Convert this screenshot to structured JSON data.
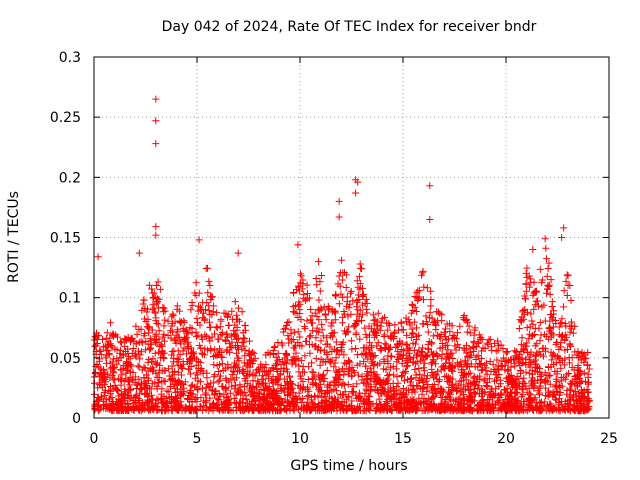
{
  "chart_data": {
    "type": "scatter",
    "title": "Day 042 of 2024, Rate Of TEC Index for receiver bndr",
    "xlabel": "GPS time / hours",
    "ylabel": "ROTI / TECUs",
    "xlim": [
      0,
      25
    ],
    "ylim": [
      0,
      0.3
    ],
    "xticks": [
      0,
      5,
      10,
      15,
      20,
      25
    ],
    "yticks": [
      0,
      0.05,
      0.1,
      0.15,
      0.2,
      0.25,
      0.3
    ],
    "xtick_labels": [
      "0",
      "5",
      "10",
      "15",
      "20",
      "25"
    ],
    "ytick_labels": [
      "0",
      "0.05",
      "0.1",
      "0.15",
      "0.2",
      "0.25",
      "0.3"
    ],
    "grid": true,
    "marker": "+",
    "color": "#ff0000",
    "notable_points": [
      {
        "x": 3.0,
        "y": 0.265
      },
      {
        "x": 3.0,
        "y": 0.247
      },
      {
        "x": 3.0,
        "y": 0.228
      },
      {
        "x": 3.0,
        "y": 0.159
      },
      {
        "x": 3.0,
        "y": 0.152
      },
      {
        "x": 12.7,
        "y": 0.198
      },
      {
        "x": 12.8,
        "y": 0.196
      },
      {
        "x": 12.7,
        "y": 0.187
      },
      {
        "x": 11.9,
        "y": 0.18
      },
      {
        "x": 11.9,
        "y": 0.167
      },
      {
        "x": 16.3,
        "y": 0.193
      },
      {
        "x": 16.3,
        "y": 0.165
      },
      {
        "x": 22.8,
        "y": 0.158
      },
      {
        "x": 22.7,
        "y": 0.15
      },
      {
        "x": 21.9,
        "y": 0.149
      },
      {
        "x": 5.1,
        "y": 0.148
      },
      {
        "x": 9.9,
        "y": 0.144
      },
      {
        "x": 0.2,
        "y": 0.134
      },
      {
        "x": 7.0,
        "y": 0.137
      },
      {
        "x": 10.9,
        "y": 0.13
      },
      {
        "x": 21.3,
        "y": 0.14
      },
      {
        "x": 2.2,
        "y": 0.137
      }
    ],
    "activity_profile": {
      "hours": [
        0,
        0.5,
        1,
        1.5,
        2,
        2.5,
        3,
        3.5,
        4,
        4.5,
        5,
        5.5,
        6,
        6.5,
        7,
        7.5,
        8,
        8.5,
        9,
        9.5,
        10,
        10.5,
        11,
        11.5,
        12,
        12.5,
        13,
        13.5,
        14,
        14.5,
        15,
        15.5,
        16,
        16.5,
        17,
        17.5,
        18,
        18.5,
        19,
        19.5,
        20,
        20.5,
        21,
        21.5,
        22,
        22.5,
        23,
        23.5,
        24
      ],
      "typical_max": [
        0.06,
        0.08,
        0.07,
        0.06,
        0.07,
        0.1,
        0.12,
        0.08,
        0.09,
        0.07,
        0.11,
        0.12,
        0.09,
        0.08,
        0.1,
        0.06,
        0.04,
        0.05,
        0.06,
        0.08,
        0.13,
        0.1,
        0.12,
        0.08,
        0.13,
        0.1,
        0.13,
        0.09,
        0.08,
        0.07,
        0.08,
        0.09,
        0.12,
        0.09,
        0.08,
        0.07,
        0.08,
        0.07,
        0.06,
        0.06,
        0.05,
        0.05,
        0.12,
        0.11,
        0.14,
        0.07,
        0.12,
        0.05,
        0.05
      ]
    }
  }
}
